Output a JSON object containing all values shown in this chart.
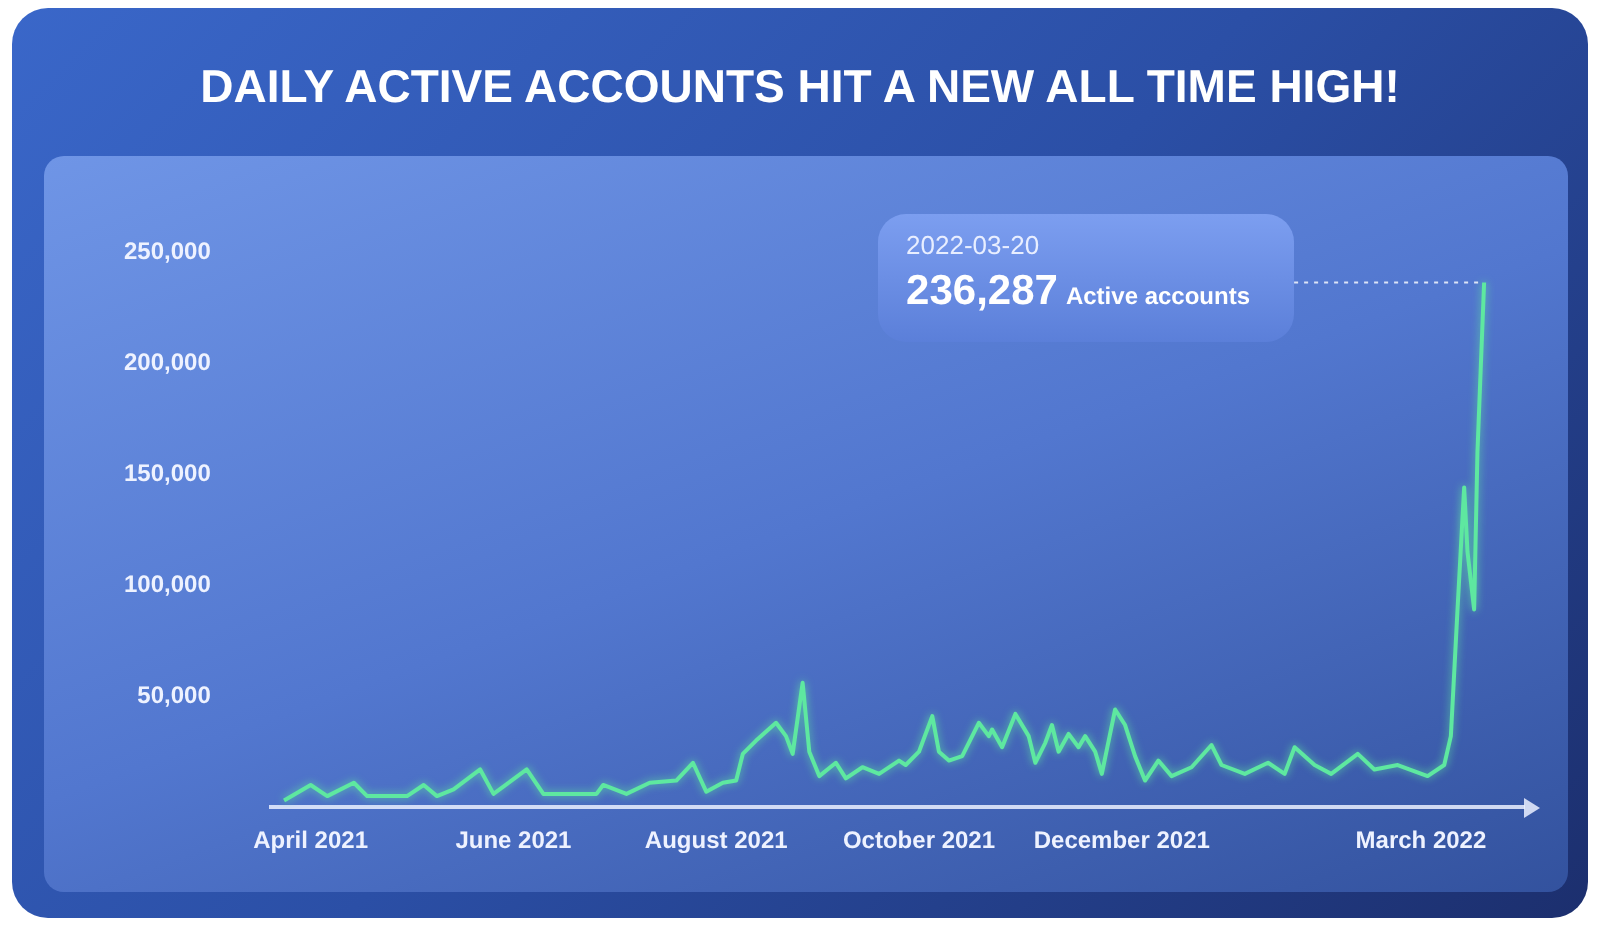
{
  "chart_data": {
    "type": "line",
    "title": "DAILY ACTIVE ACCOUNTS HIT A NEW ALL TIME HIGH!",
    "x": [
      "2021-03-24",
      "2021-04-01",
      "2021-04-06",
      "2021-04-14",
      "2021-04-18",
      "2021-04-30",
      "2021-05-05",
      "2021-05-09",
      "2021-05-14",
      "2021-05-22",
      "2021-05-26",
      "2021-06-05",
      "2021-06-10",
      "2021-06-26",
      "2021-06-28",
      "2021-07-05",
      "2021-07-12",
      "2021-07-20",
      "2021-07-25",
      "2021-07-29",
      "2021-08-03",
      "2021-08-07",
      "2021-08-09",
      "2021-08-13",
      "2021-08-19",
      "2021-08-22",
      "2021-08-24",
      "2021-08-27",
      "2021-08-29",
      "2021-09-01",
      "2021-09-06",
      "2021-09-09",
      "2021-09-14",
      "2021-09-19",
      "2021-09-25",
      "2021-09-27",
      "2021-10-01",
      "2021-10-05",
      "2021-10-07",
      "2021-10-10",
      "2021-10-14",
      "2021-10-19",
      "2021-10-22",
      "2021-10-23",
      "2021-10-26",
      "2021-10-30",
      "2021-11-03",
      "2021-11-05",
      "2021-11-08",
      "2021-11-10",
      "2021-11-12",
      "2021-11-15",
      "2021-11-18",
      "2021-11-20",
      "2021-11-23",
      "2021-11-25",
      "2021-11-29",
      "2021-12-02",
      "2021-12-05",
      "2021-12-08",
      "2021-12-12",
      "2021-12-16",
      "2021-12-22",
      "2021-12-28",
      "2021-12-31",
      "2022-01-07",
      "2022-01-14",
      "2022-01-19",
      "2022-01-22",
      "2022-01-28",
      "2022-02-02",
      "2022-02-10",
      "2022-02-15",
      "2022-02-22",
      "2022-03-03",
      "2022-03-08",
      "2022-03-10",
      "2022-03-12",
      "2022-03-14",
      "2022-03-15",
      "2022-03-17",
      "2022-03-18",
      "2022-03-20"
    ],
    "series": [
      {
        "color": "#5ee8a0",
        "values": [
          3000,
          10000,
          5000,
          11000,
          5000,
          5000,
          10000,
          5000,
          8000,
          17000,
          6000,
          17000,
          6000,
          6000,
          10000,
          6000,
          11000,
          12000,
          20000,
          7000,
          11000,
          12000,
          24000,
          30000,
          38000,
          32000,
          24000,
          56000,
          25000,
          14000,
          20000,
          13000,
          18000,
          15000,
          21000,
          19000,
          25000,
          41000,
          25000,
          21000,
          23000,
          38000,
          32000,
          35000,
          27000,
          42000,
          32000,
          20000,
          29000,
          37000,
          25000,
          33000,
          27000,
          32000,
          25000,
          15000,
          44000,
          37000,
          23000,
          12000,
          21000,
          14000,
          18000,
          28000,
          19000,
          15000,
          20000,
          15000,
          27000,
          19000,
          15000,
          24000,
          17000,
          19000,
          14000,
          19000,
          32000,
          89000,
          144000,
          115000,
          89000,
          160000,
          236287
        ]
      }
    ],
    "xlim": [
      "2021-03-20",
      "2022-04-01"
    ],
    "xticks": [
      {
        "value": "2021-04-01",
        "label": "April 2021"
      },
      {
        "value": "2021-06-01",
        "label": "June 2021"
      },
      {
        "value": "2021-08-01",
        "label": "August 2021"
      },
      {
        "value": "2021-10-01",
        "label": "October 2021"
      },
      {
        "value": "2021-12-01",
        "label": "December 2021"
      },
      {
        "value": "2022-03-01",
        "label": "March 2022"
      }
    ],
    "ylim": [
      0,
      250000
    ],
    "yticks": [
      {
        "value": 50000,
        "label": "50,000"
      },
      {
        "value": 100000,
        "label": "100,000"
      },
      {
        "value": 150000,
        "label": "150,000"
      },
      {
        "value": 200000,
        "label": "200,000"
      },
      {
        "value": 250000,
        "label": "250,000"
      }
    ],
    "ref_lines": [
      {
        "axis": "y",
        "value": 236287,
        "color": "#ffffff",
        "line_style": "dotted"
      }
    ],
    "grid": false,
    "legend": false,
    "marker": "none",
    "line_style": "solid",
    "annotations": [
      "2022-03-20",
      "236,287",
      "Active accounts"
    ]
  }
}
